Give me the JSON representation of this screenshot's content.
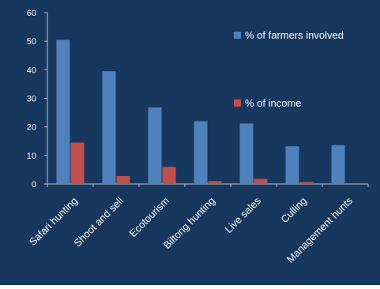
{
  "chart_data": {
    "type": "bar",
    "categories": [
      "Safari hunting",
      "Shoot and sell",
      "Ecotourism",
      "Biltong hunting",
      "Live sales",
      "Culling",
      "Management hunts"
    ],
    "series": [
      {
        "name": "% of farmers involved",
        "color": "#4f81bd",
        "values": [
          50.5,
          39.5,
          26.8,
          22,
          21.2,
          13.2,
          13.6
        ]
      },
      {
        "name": "% of income",
        "color": "#c0504d",
        "values": [
          14.5,
          2.8,
          6.0,
          1.0,
          1.8,
          0.7,
          null
        ]
      }
    ],
    "ylim": [
      0,
      60
    ],
    "yticks": [
      0,
      10,
      20,
      30,
      40,
      50,
      60
    ],
    "grid": false,
    "legend_position": "right",
    "background": "#17375e",
    "text_color": "#ffffff"
  }
}
